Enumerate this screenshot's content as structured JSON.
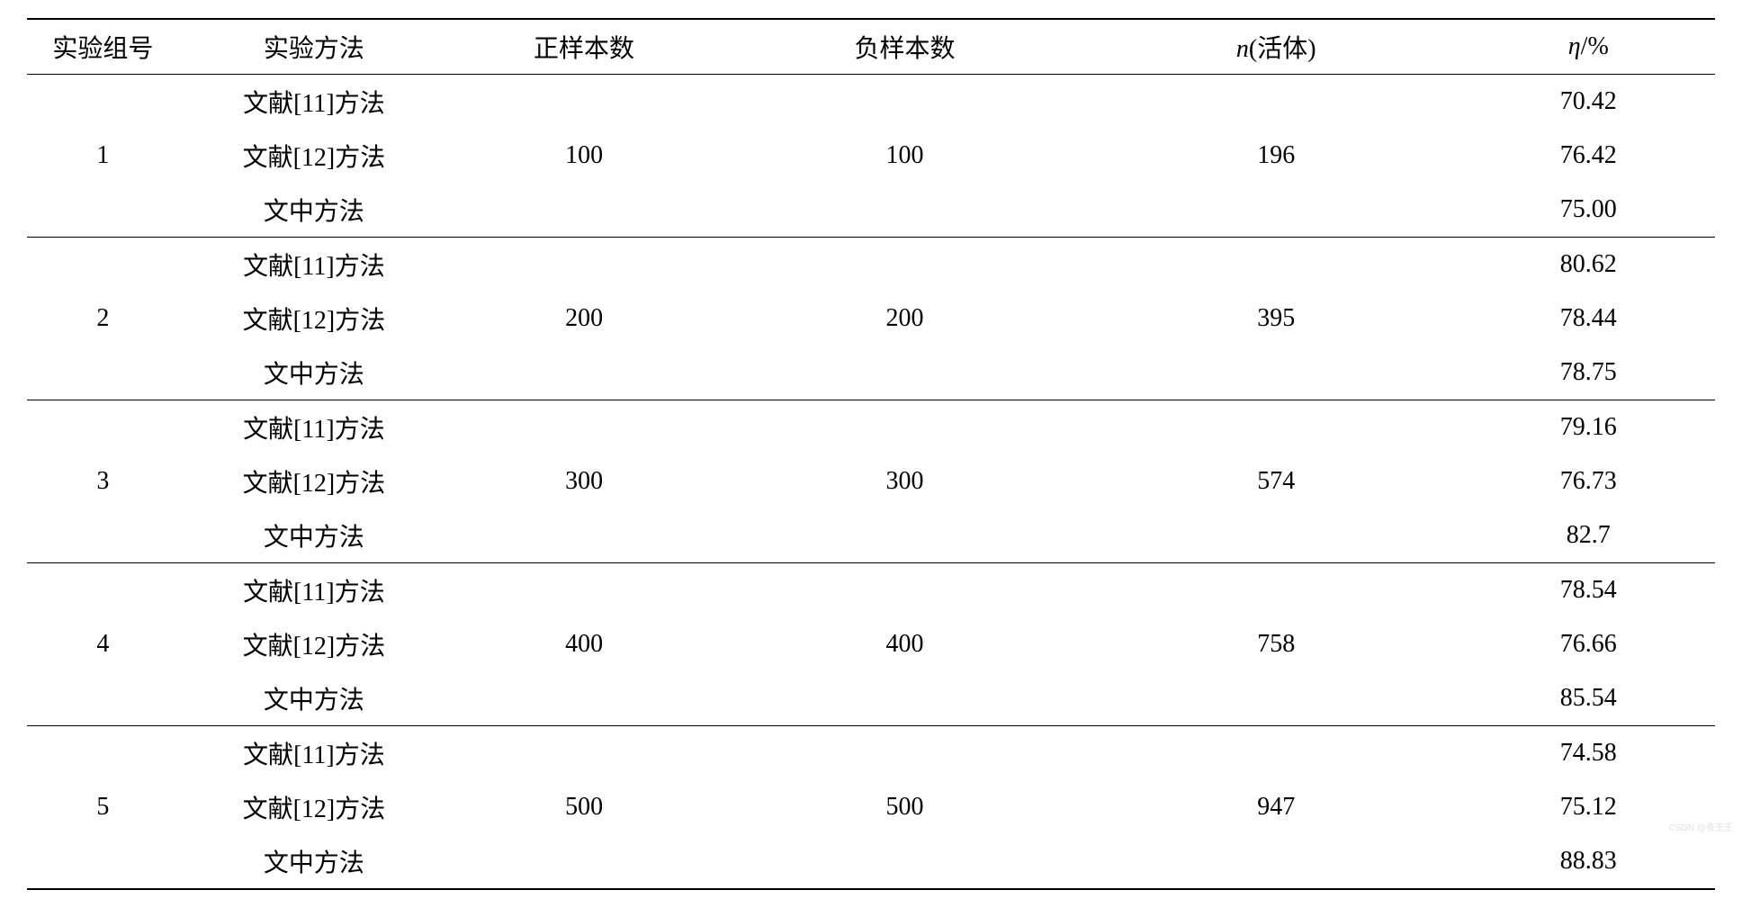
{
  "table": {
    "headers": {
      "group": "实验组号",
      "method": "实验方法",
      "positive": "正样本数",
      "negative": "负样本数",
      "n_label_prefix": "n",
      "n_label_suffix": "(活体)",
      "eta_prefix": "η",
      "eta_suffix": "/%"
    },
    "methods": {
      "ref11": "文献[11]方法",
      "ref12": "文献[12]方法",
      "proposed": "文中方法"
    },
    "groups": [
      {
        "id": "1",
        "positive": "100",
        "negative": "100",
        "n": "196",
        "eta": [
          "70.42",
          "76.42",
          "75.00"
        ]
      },
      {
        "id": "2",
        "positive": "200",
        "negative": "200",
        "n": "395",
        "eta": [
          "80.62",
          "78.44",
          "78.75"
        ]
      },
      {
        "id": "3",
        "positive": "300",
        "negative": "300",
        "n": "574",
        "eta": [
          "79.16",
          "76.73",
          "82.7"
        ]
      },
      {
        "id": "4",
        "positive": "400",
        "negative": "400",
        "n": "758",
        "eta": [
          "78.54",
          "76.66",
          "85.54"
        ]
      },
      {
        "id": "5",
        "positive": "500",
        "negative": "500",
        "n": "947",
        "eta": [
          "74.58",
          "75.12",
          "88.83"
        ]
      }
    ]
  },
  "watermark": "CSDN @查王王",
  "style": {
    "background_color": "#ffffff",
    "text_color": "#000000",
    "border_color": "#000000",
    "font_family": "SimSun",
    "base_fontsize": 28,
    "top_border_width": 2,
    "header_border_width": 1.5,
    "group_border_width": 1.5,
    "bottom_border_width": 2,
    "cell_padding_v": 10,
    "cell_padding_h": 8,
    "column_widths_pct": [
      9,
      16,
      16,
      22,
      22,
      15
    ]
  }
}
